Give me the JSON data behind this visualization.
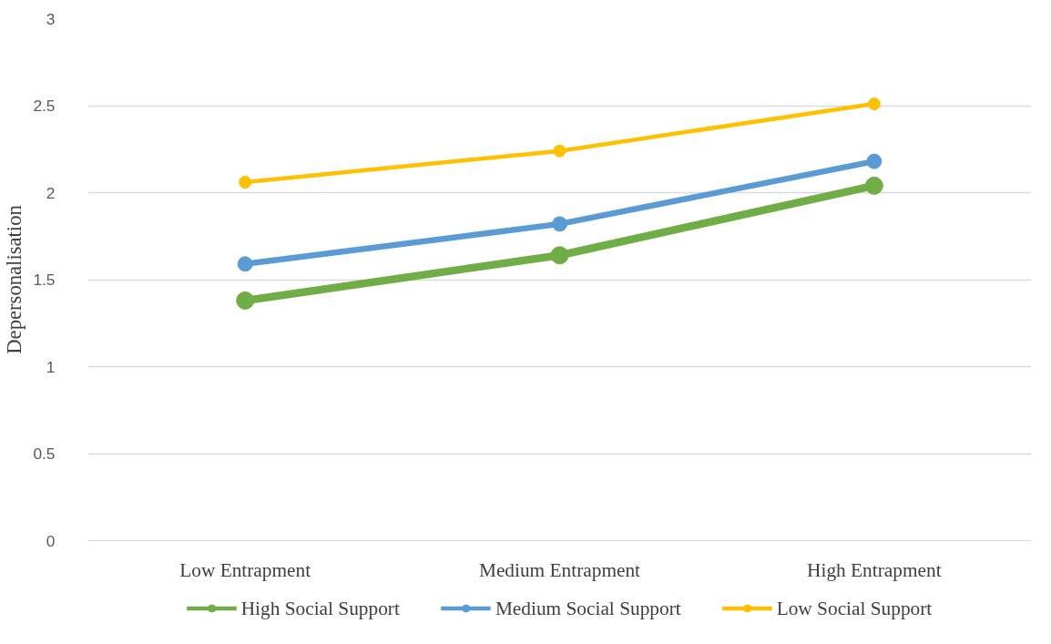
{
  "chart_data": {
    "type": "line",
    "ylabel": "Depersonalisation",
    "categories": [
      "Low Entrapment",
      "Medium Entrapment",
      "High Entrapment"
    ],
    "series": [
      {
        "name": "High Social Support",
        "color": "#70ad47",
        "values": [
          1.38,
          1.64,
          2.04
        ]
      },
      {
        "name": "Medium Social Support",
        "color": "#5b9bd5",
        "values": [
          1.59,
          1.82,
          2.18
        ]
      },
      {
        "name": "Low Social Support",
        "color": "#ffc000",
        "values": [
          2.06,
          2.24,
          2.51
        ]
      }
    ],
    "ylim": [
      0,
      3
    ],
    "yticks": [
      0,
      0.5,
      1,
      1.5,
      2,
      2.5,
      3
    ],
    "grid": "y",
    "legend": "bottom",
    "marker": "circle",
    "line_style": "solid"
  }
}
